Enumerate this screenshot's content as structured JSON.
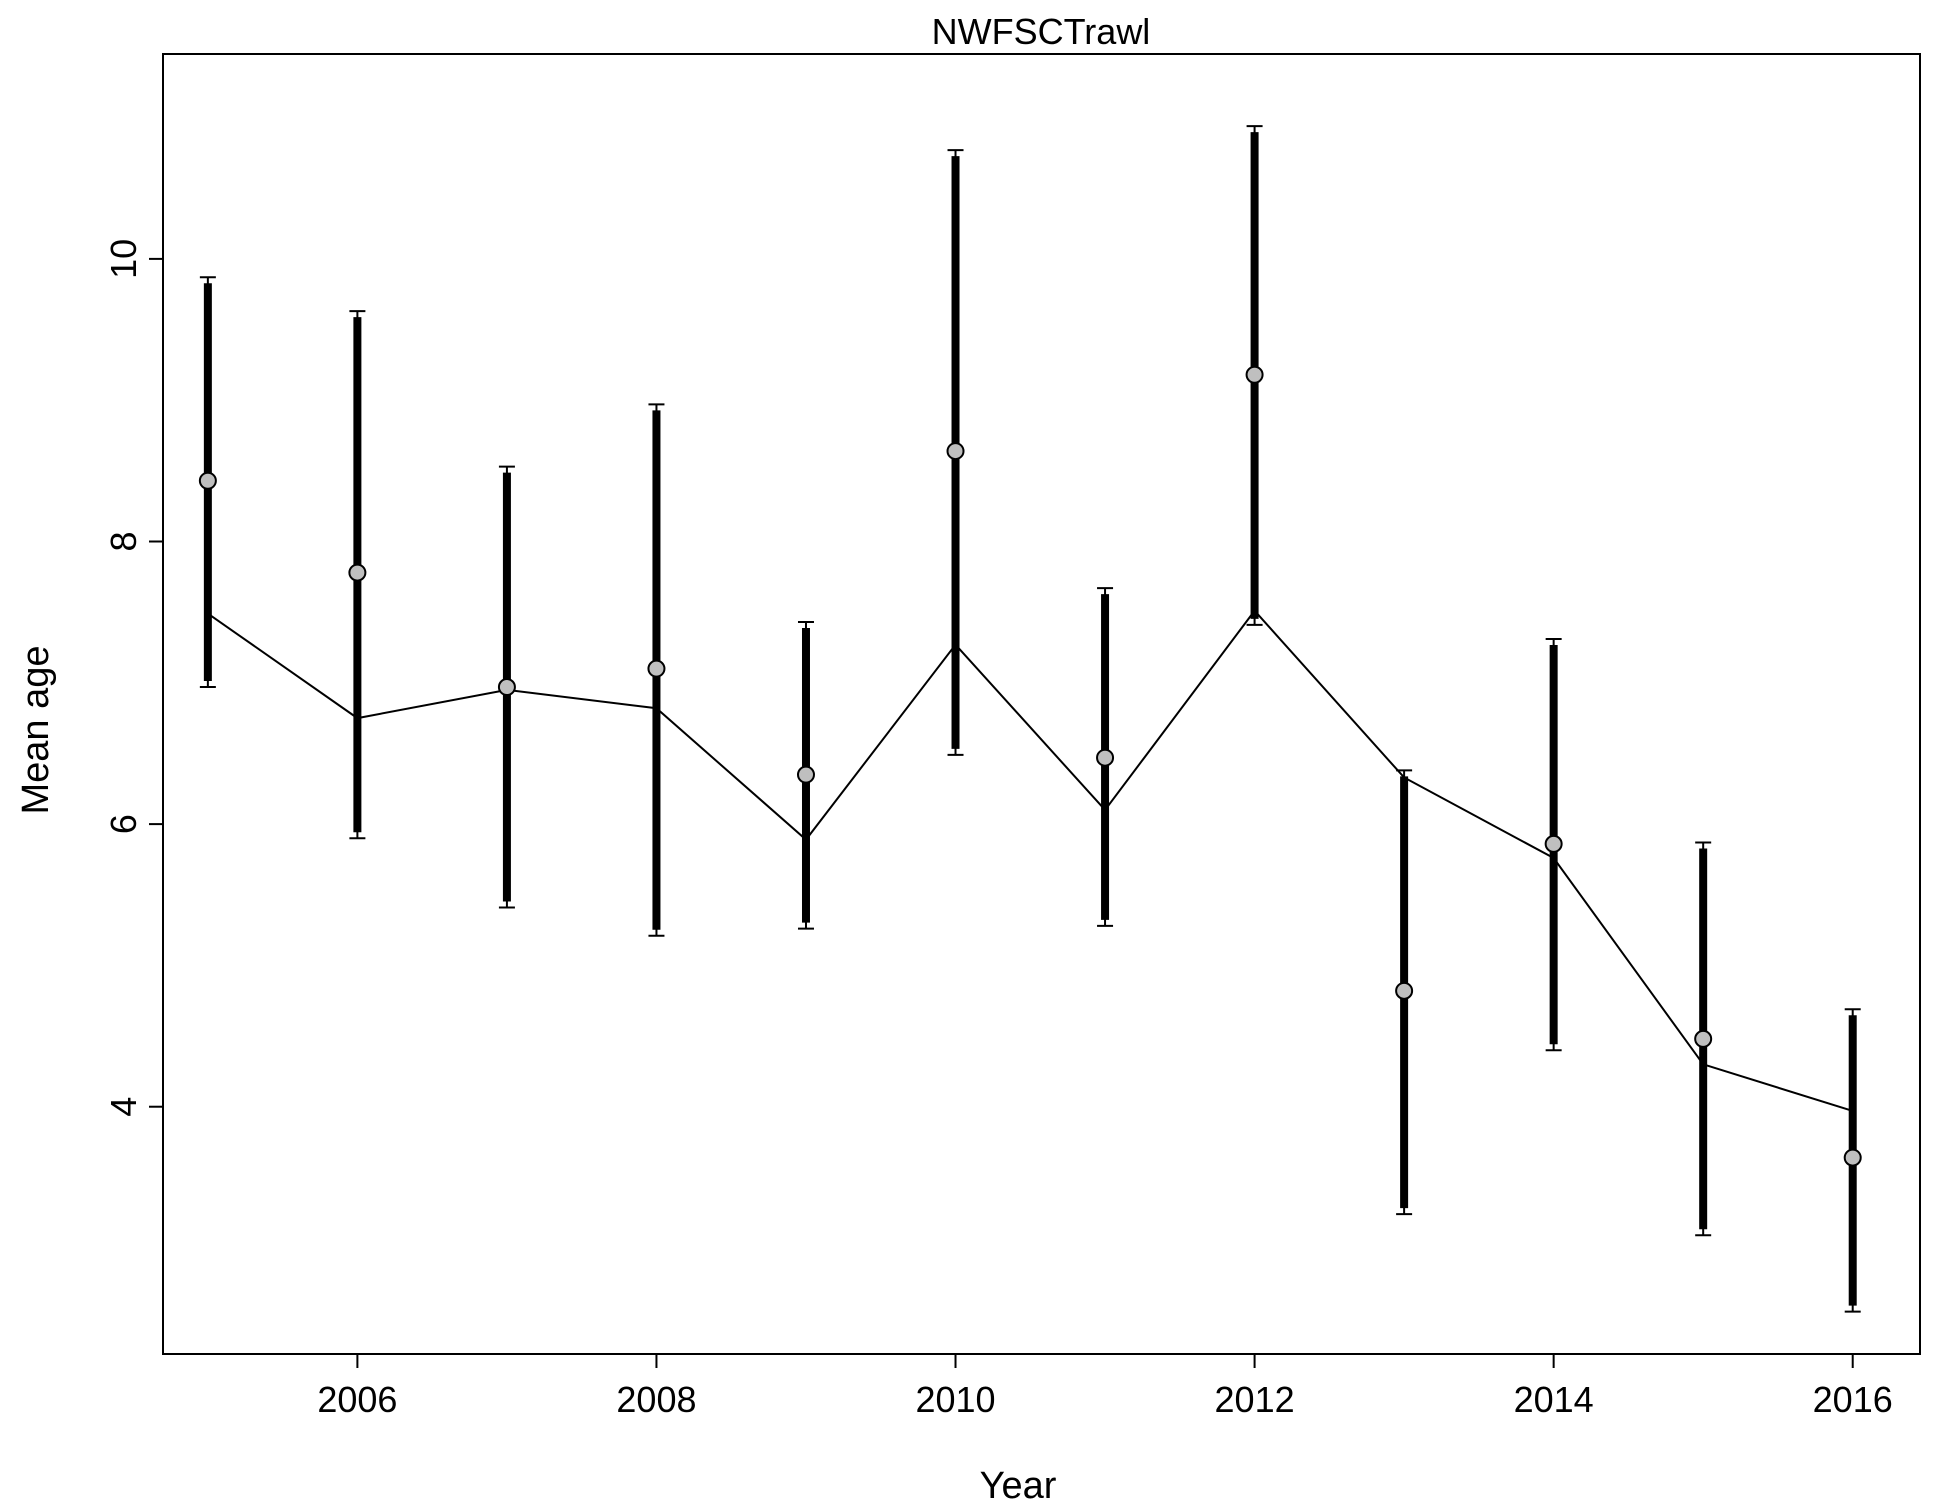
{
  "chart_data": {
    "type": "line",
    "title": "NWFSCTrawl",
    "xlabel": "Year",
    "ylabel": "Mean age",
    "xlim": [
      2004.7,
      2016.45
    ],
    "ylim": [
      2.25,
      11.45
    ],
    "x_ticks": [
      2006,
      2008,
      2010,
      2012,
      2014,
      2016
    ],
    "y_ticks": [
      4,
      6,
      8,
      10
    ],
    "x": [
      2005,
      2006,
      2007,
      2008,
      2009,
      2010,
      2011,
      2012,
      2013,
      2014,
      2015,
      2016
    ],
    "series": [
      {
        "role": "observed",
        "values": [
          8.43,
          7.78,
          6.97,
          7.1,
          6.35,
          8.64,
          6.47,
          9.18,
          4.82,
          5.86,
          4.48,
          3.64
        ],
        "ci_lower": [
          6.97,
          5.9,
          5.41,
          5.21,
          5.26,
          6.49,
          5.28,
          7.41,
          3.24,
          4.4,
          3.09,
          2.55
        ],
        "ci_upper": [
          9.87,
          9.63,
          8.53,
          8.97,
          7.43,
          10.77,
          7.67,
          10.94,
          6.38,
          7.31,
          5.87,
          4.69
        ],
        "marker_fill": "#bfbfbf",
        "bar_color": "#000000"
      },
      {
        "role": "expected",
        "values": [
          7.49,
          6.75,
          6.95,
          6.82,
          5.89,
          7.27,
          6.1,
          7.51,
          6.33,
          5.76,
          4.3,
          3.97
        ],
        "line_color": "#000000"
      }
    ],
    "grid": false,
    "legend": "none"
  }
}
